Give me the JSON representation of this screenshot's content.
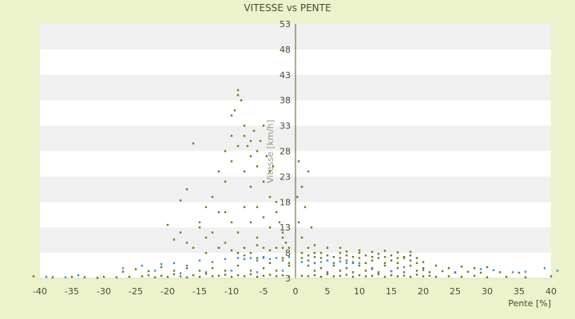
{
  "chart_data": {
    "type": "scatter",
    "title": "VITESSE vs PENTE",
    "xlabel": "Pente [%]",
    "ylabel": "Vitesse [km/h]",
    "xlim": [
      -40,
      40
    ],
    "ylim": [
      3,
      53
    ],
    "x_ticks": [
      -40,
      -35,
      -30,
      -25,
      -20,
      -15,
      -10,
      -5,
      0,
      5,
      10,
      15,
      20,
      25,
      30,
      35,
      40
    ],
    "y_ticks": [
      3,
      8,
      13,
      18,
      23,
      28,
      33,
      38,
      43,
      48,
      53
    ],
    "grid": true,
    "legend": "none",
    "colors": {
      "background": "#ecf2cc",
      "plot_band_light": "#ffffff",
      "plot_band_dark": "#f0f0f0",
      "axis_line": "#5a5a2a",
      "series_main": "#6b7a10",
      "series_secondary": "#3a8fe0"
    },
    "series": [
      {
        "color": "#6b7a10",
        "points": [
          [
            -41,
            3.4
          ],
          [
            -38,
            3.2
          ],
          [
            -35,
            3.3
          ],
          [
            -33,
            3.2
          ],
          [
            -31,
            3.1
          ],
          [
            -30,
            3.3
          ],
          [
            -28,
            3.2
          ],
          [
            -26,
            3.3
          ],
          [
            -24,
            3.4
          ],
          [
            -23,
            3.6
          ],
          [
            -22,
            3.2
          ],
          [
            -21,
            3.5
          ],
          [
            -20,
            3.3
          ],
          [
            -19,
            3.8
          ],
          [
            -18,
            3.4
          ],
          [
            -17,
            3.2
          ],
          [
            -16,
            3.6
          ],
          [
            -15,
            3.3
          ],
          [
            -14,
            3.9
          ],
          [
            -13,
            3.4
          ],
          [
            -12,
            3.5
          ],
          [
            -11,
            3.7
          ],
          [
            -10,
            3.3
          ],
          [
            -9,
            3.6
          ],
          [
            -8,
            3.4
          ],
          [
            -7,
            3.8
          ],
          [
            -6,
            3.3
          ],
          [
            -5,
            3.5
          ],
          [
            -4,
            3.7
          ],
          [
            -3,
            3.4
          ],
          [
            -2,
            3.6
          ],
          [
            -1,
            3.3
          ],
          [
            1,
            3.5
          ],
          [
            2,
            3.4
          ],
          [
            3,
            3.6
          ],
          [
            4,
            3.3
          ],
          [
            5,
            3.8
          ],
          [
            6,
            3.4
          ],
          [
            7,
            3.5
          ],
          [
            8,
            3.7
          ],
          [
            9,
            3.3
          ],
          [
            10,
            3.6
          ],
          [
            11,
            3.4
          ],
          [
            12,
            3.5
          ],
          [
            13,
            3.8
          ],
          [
            14,
            3.3
          ],
          [
            15,
            3.6
          ],
          [
            16,
            3.4
          ],
          [
            17,
            3.5
          ],
          [
            18,
            3.3
          ],
          [
            19,
            3.7
          ],
          [
            20,
            3.4
          ],
          [
            21,
            3.5
          ],
          [
            22,
            3.3
          ],
          [
            24,
            3.4
          ],
          [
            26,
            3.3
          ],
          [
            28,
            3.5
          ],
          [
            30,
            3.2
          ],
          [
            33,
            3.3
          ],
          [
            36,
            3.2
          ],
          [
            40,
            3.4
          ],
          [
            -20,
            13.5
          ],
          [
            -19,
            10.6
          ],
          [
            -18,
            18.3
          ],
          [
            -17,
            20.5
          ],
          [
            -16,
            29.5
          ],
          [
            -15,
            14
          ],
          [
            -14,
            11
          ],
          [
            -13,
            19
          ],
          [
            -12,
            24
          ],
          [
            -11,
            16
          ],
          [
            -10,
            31
          ],
          [
            -9.5,
            36
          ],
          [
            -9,
            40
          ],
          [
            -8.5,
            38
          ],
          [
            -8,
            33
          ],
          [
            -7.5,
            29
          ],
          [
            -7,
            27
          ],
          [
            -6.5,
            32
          ],
          [
            -6,
            25
          ],
          [
            -5.5,
            30
          ],
          [
            -5,
            22
          ],
          [
            -4.5,
            27
          ],
          [
            -4,
            19
          ],
          [
            -3.5,
            25
          ],
          [
            -3,
            18
          ],
          [
            -2.5,
            14
          ],
          [
            -2,
            12
          ],
          [
            -1.5,
            10
          ],
          [
            -1,
            9
          ],
          [
            -12,
            16
          ],
          [
            -11,
            22
          ],
          [
            -10,
            26
          ],
          [
            -9,
            29
          ],
          [
            -8,
            24
          ],
          [
            -7,
            21
          ],
          [
            -6,
            17
          ],
          [
            -5,
            15
          ],
          [
            -13,
            12
          ],
          [
            -14,
            17
          ],
          [
            -15,
            13
          ],
          [
            -16,
            9
          ],
          [
            -17,
            10
          ],
          [
            -18,
            12
          ],
          [
            -11,
            28
          ],
          [
            -10,
            35
          ],
          [
            -9,
            39
          ],
          [
            -8,
            31
          ],
          [
            -7,
            30
          ],
          [
            -6,
            28
          ],
          [
            -5,
            33
          ],
          [
            -4,
            24
          ],
          [
            -3,
            16
          ],
          [
            -2,
            11
          ],
          [
            -10,
            14
          ],
          [
            -9,
            12
          ],
          [
            -8,
            17
          ],
          [
            -7,
            14
          ],
          [
            -6,
            11
          ],
          [
            -5,
            9
          ],
          [
            -4,
            13
          ],
          [
            -3,
            9
          ],
          [
            -2,
            7
          ],
          [
            -1,
            6
          ],
          [
            -12,
            9
          ],
          [
            -11,
            10
          ],
          [
            -9,
            8
          ],
          [
            -8,
            9
          ],
          [
            -7,
            8
          ],
          [
            -6,
            7
          ],
          [
            -5,
            7
          ],
          [
            -4,
            6
          ],
          [
            0.5,
            14
          ],
          [
            1,
            11
          ],
          [
            1.5,
            17
          ],
          [
            2,
            9
          ],
          [
            2.5,
            13
          ],
          [
            3,
            8
          ],
          [
            1,
            21
          ],
          [
            0.5,
            26
          ],
          [
            2,
            24
          ],
          [
            0.3,
            19
          ],
          [
            1,
            7
          ],
          [
            2,
            6.5
          ],
          [
            3,
            6
          ],
          [
            4,
            7
          ],
          [
            5,
            6.5
          ],
          [
            6,
            6
          ],
          [
            7,
            7
          ],
          [
            8,
            6.5
          ],
          [
            9,
            6
          ],
          [
            10,
            7
          ],
          [
            11,
            6
          ],
          [
            12,
            6.5
          ],
          [
            13,
            7
          ],
          [
            14,
            6
          ],
          [
            15,
            6.5
          ],
          [
            16,
            6
          ],
          [
            17,
            7
          ],
          [
            18,
            6.5
          ],
          [
            19,
            6
          ],
          [
            20,
            6.2
          ],
          [
            1,
            8
          ],
          [
            2,
            7.5
          ],
          [
            3,
            7.2
          ],
          [
            4,
            8
          ],
          [
            5,
            7.5
          ],
          [
            6,
            7.2
          ],
          [
            7,
            8
          ],
          [
            8,
            7.5
          ],
          [
            9,
            7.2
          ],
          [
            10,
            8
          ],
          [
            11,
            7.5
          ],
          [
            12,
            7.2
          ],
          [
            13,
            7.8
          ],
          [
            14,
            7.2
          ],
          [
            15,
            7.5
          ],
          [
            16,
            7
          ],
          [
            17,
            7.2
          ],
          [
            18,
            7.5
          ],
          [
            19,
            7
          ],
          [
            2,
            5.5
          ],
          [
            4,
            5
          ],
          [
            6,
            5.5
          ],
          [
            8,
            5
          ],
          [
            10,
            5.5
          ],
          [
            12,
            5
          ],
          [
            14,
            5.5
          ],
          [
            16,
            5
          ],
          [
            18,
            5.5
          ],
          [
            20,
            5
          ],
          [
            22,
            5.5
          ],
          [
            24,
            5
          ],
          [
            26,
            5.3
          ],
          [
            28,
            5
          ],
          [
            30,
            5.2
          ],
          [
            3,
            4.5
          ],
          [
            5,
            4.2
          ],
          [
            7,
            4.5
          ],
          [
            9,
            4.2
          ],
          [
            11,
            4.5
          ],
          [
            13,
            4.2
          ],
          [
            15,
            4.4
          ],
          [
            17,
            4.2
          ],
          [
            19,
            4.5
          ],
          [
            21,
            4.2
          ],
          [
            23,
            4.4
          ],
          [
            25,
            4.1
          ],
          [
            27,
            4.3
          ],
          [
            29,
            4.1
          ],
          [
            32,
            4.2
          ],
          [
            35,
            4.1
          ],
          [
            -15,
            4.5
          ],
          [
            -13,
            5
          ],
          [
            -11,
            4.5
          ],
          [
            -9,
            5.5
          ],
          [
            -7,
            4.5
          ],
          [
            -5,
            5
          ],
          [
            -3,
            4.5
          ],
          [
            -1,
            5.5
          ],
          [
            -17,
            5
          ],
          [
            -19,
            4.5
          ],
          [
            -21,
            5.2
          ],
          [
            -23,
            4.4
          ],
          [
            -25,
            4.8
          ],
          [
            -27,
            4.3
          ],
          [
            8,
            8.3
          ],
          [
            10,
            8.5
          ],
          [
            12,
            8.2
          ],
          [
            14,
            8.4
          ],
          [
            16,
            8.1
          ],
          [
            18,
            8.2
          ],
          [
            5,
            9
          ],
          [
            7,
            9
          ],
          [
            3,
            9.5
          ],
          [
            -14,
            8
          ],
          [
            -12,
            9
          ],
          [
            -10,
            8.5
          ],
          [
            -8,
            7.5
          ],
          [
            -6,
            9.5
          ],
          [
            -4,
            8.5
          ],
          [
            -2,
            9
          ]
        ]
      },
      {
        "color": "#3a8fe0",
        "points": [
          [
            -27,
            5
          ],
          [
            -24,
            5.5
          ],
          [
            -21,
            5.8
          ],
          [
            -19,
            6
          ],
          [
            -17,
            5.5
          ],
          [
            -15,
            6.5
          ],
          [
            -13,
            6.2
          ],
          [
            -11,
            6.8
          ],
          [
            -9,
            7
          ],
          [
            -8,
            6.8
          ],
          [
            -7,
            7
          ],
          [
            -6,
            6.5
          ],
          [
            -5,
            7.2
          ],
          [
            -4,
            6.8
          ],
          [
            -3,
            7
          ],
          [
            -2,
            6.5
          ],
          [
            -1,
            7.2
          ],
          [
            1,
            6.2
          ],
          [
            2,
            6.5
          ],
          [
            3,
            6
          ],
          [
            4,
            6.2
          ],
          [
            5,
            6.5
          ],
          [
            6,
            6
          ],
          [
            7,
            6.3
          ],
          [
            8,
            6
          ],
          [
            9,
            6.2
          ],
          [
            10,
            6
          ],
          [
            -22,
            4.5
          ],
          [
            -18,
            4
          ],
          [
            -14,
            4.2
          ],
          [
            -10,
            4.5
          ],
          [
            -6,
            4.2
          ],
          [
            -2,
            4.5
          ],
          [
            15,
            4.4
          ],
          [
            20,
            4.6
          ],
          [
            25,
            4.2
          ],
          [
            29,
            4.8
          ],
          [
            31,
            4.6
          ],
          [
            34,
            4.2
          ],
          [
            36,
            4.3
          ],
          [
            39,
            5
          ],
          [
            41,
            4.5
          ],
          [
            -34,
            3.6
          ],
          [
            -36,
            3.2
          ],
          [
            -39,
            3.3
          ],
          [
            12,
            4.8
          ],
          [
            17,
            5.2
          ]
        ]
      }
    ]
  }
}
